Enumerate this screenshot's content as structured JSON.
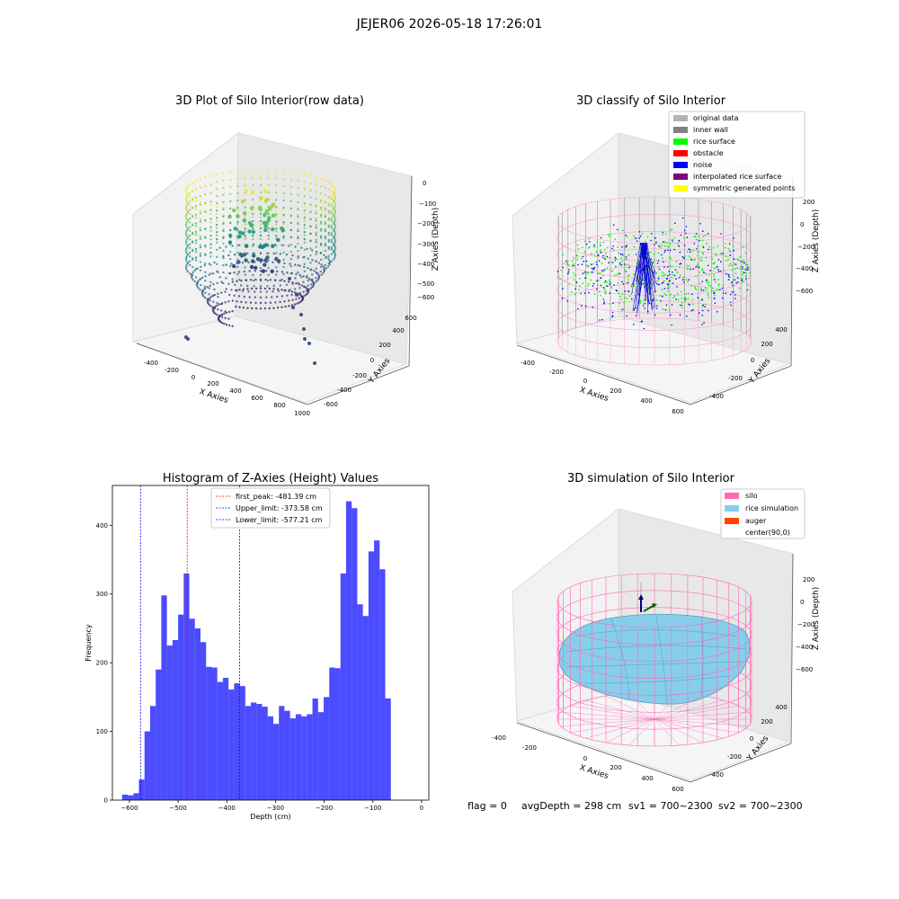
{
  "suptitle": "JEJER06 2026-05-18 17:26:01",
  "panels": {
    "raw": {
      "title": "3D Plot of Silo Interior(row data)",
      "xlabel": "X Axies",
      "ylabel": "Y Axies",
      "zlabel": "Z Axies (Depth)",
      "xticks": [
        "-400",
        "-200",
        "0",
        "200",
        "400",
        "600",
        "800",
        "1000"
      ],
      "yticks": [
        "-600",
        "-400",
        "-200",
        "0",
        "200",
        "400",
        "600"
      ],
      "zticks": [
        "0",
        "−100",
        "−200",
        "−300",
        "−400",
        "−500",
        "−600"
      ]
    },
    "classify": {
      "title": "3D classify of Silo Interior",
      "xlabel": "X Axies",
      "ylabel": "Y Axies",
      "zlabel": "Z Axies (Depth)",
      "xticks": [
        "-400",
        "-200",
        "0",
        "200",
        "400",
        "600"
      ],
      "yticks": [
        "-400",
        "-200",
        "0",
        "200",
        "400"
      ],
      "zticks": [
        "200",
        "0",
        "−200",
        "−400",
        "−600"
      ],
      "legend": [
        {
          "label": "original data",
          "color": "#b3b3b3"
        },
        {
          "label": "inner wall",
          "color": "#808080"
        },
        {
          "label": "rice surface",
          "color": "#00ff00"
        },
        {
          "label": "obstacle",
          "color": "#ff0000"
        },
        {
          "label": "noise",
          "color": "#0000ff"
        },
        {
          "label": "interpolated rice surface",
          "color": "#800080"
        },
        {
          "label": "symmetric generated points",
          "color": "#ffff00"
        }
      ]
    },
    "simulation": {
      "title": "3D simulation of Silo Interior",
      "xlabel": "X Axies",
      "ylabel": "Y Axies",
      "zlabel": "Z Axies (Depth)",
      "xticks": [
        "-400",
        "-200",
        "0",
        "200",
        "400",
        "600"
      ],
      "yticks": [
        "-400",
        "-200",
        "0",
        "200",
        "400"
      ],
      "zticks": [
        "200",
        "0",
        "−200",
        "−400",
        "−600"
      ],
      "legend": [
        {
          "label": "silo",
          "color": "#ff69b4"
        },
        {
          "label": "rice simulation",
          "color": "#87ceeb"
        },
        {
          "label": "auger",
          "color": "#ff4500"
        },
        {
          "label": "center(90,0)",
          "color": "#ffffff"
        }
      ]
    }
  },
  "status": {
    "flag": "flag = 0",
    "avg_depth": "avgDepth = 298 cm",
    "sv1": "sv1 = 700~2300",
    "sv2": "sv2 = 700~2300"
  },
  "chart_data": {
    "type": "bar",
    "title": "Histogram of Z-Axies (Height) Values",
    "xlabel": "Depth (cm)",
    "ylabel": "Frequency",
    "bin_start": -615,
    "bin_width": 11.5,
    "values": [
      8,
      7,
      10,
      30,
      100,
      137,
      190,
      298,
      225,
      233,
      270,
      330,
      264,
      250,
      230,
      194,
      193,
      172,
      178,
      161,
      170,
      166,
      137,
      142,
      140,
      136,
      122,
      111,
      137,
      130,
      119,
      125,
      122,
      125,
      148,
      128,
      150,
      193,
      192,
      330,
      435,
      425,
      285,
      268,
      362,
      378,
      336,
      148
    ],
    "xlim": [
      -635,
      15
    ],
    "ylim": [
      0,
      458
    ],
    "xticks": [
      -600,
      -500,
      -400,
      -300,
      -200,
      -100,
      0
    ],
    "yticks": [
      0,
      100,
      200,
      300,
      400
    ],
    "bar_color": "#0000ff",
    "vlines": [
      {
        "label": "first_peak: -481.39 cm",
        "value": -481.39,
        "color": "#ff0000"
      },
      {
        "label": "Upper_limit: -373.58 cm",
        "value": -373.58,
        "color": "#0000ff"
      },
      {
        "label": "Lower_limit: -577.21 cm",
        "value": -577.21,
        "color": "#0000ff"
      }
    ],
    "legend_position": "upper-center"
  }
}
